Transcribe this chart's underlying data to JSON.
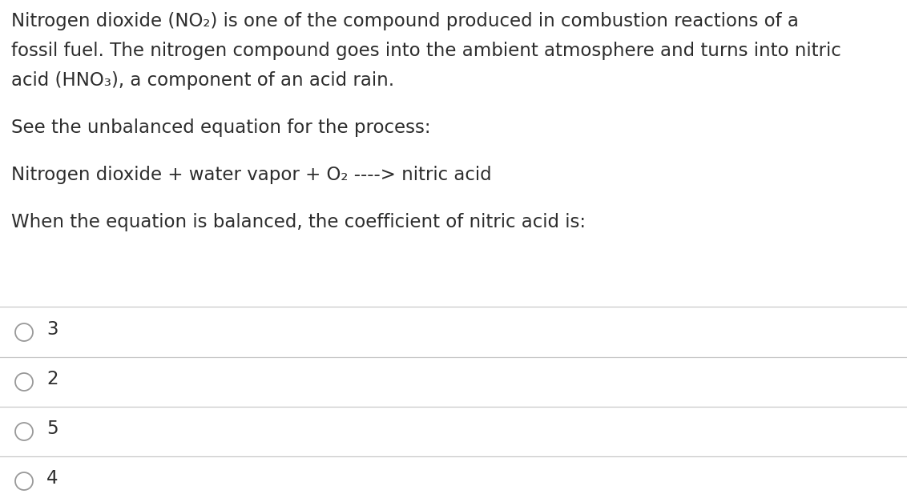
{
  "background_color": "#ffffff",
  "text_color": "#2d2d2d",
  "line_color": "#c8c8c8",
  "line1": "Nitrogen dioxide (NO₂) is one of the compound produced in combustion reactions of a",
  "line2": "fossil fuel. The nitrogen compound goes into the ambient atmosphere and turns into nitric",
  "line3": "acid (HNO₃), a component of an acid rain.",
  "line4": "See the unbalanced equation for the process:",
  "line5": "Nitrogen dioxide + water vapor + O₂ ----> nitric acid",
  "line6": "When the equation is balanced, the coefficient of nitric acid is:",
  "options": [
    "3",
    "2",
    "5",
    "4"
  ],
  "font_size_main": 16.5,
  "circle_color": "#999999",
  "figsize": [
    11.32,
    6.27
  ],
  "dpi": 100
}
